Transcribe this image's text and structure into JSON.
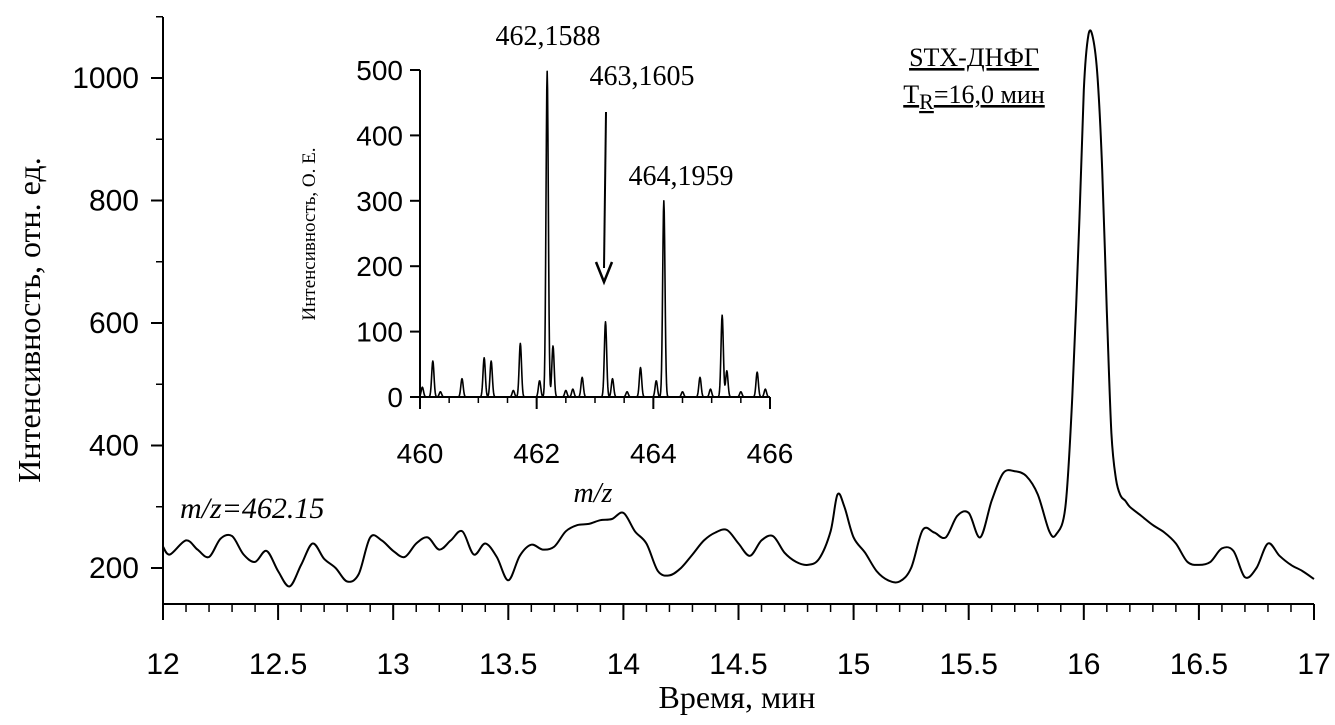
{
  "chart_data": [
    {
      "type": "line",
      "xlabel": "Время, мин",
      "ylabel": "Интенсивность, отн. ед.",
      "xlim": [
        12,
        17
      ],
      "ylim": [
        140,
        1100
      ],
      "x_ticks": [
        "12",
        "12.5",
        "13",
        "13.5",
        "14",
        "14.5",
        "15",
        "15.5",
        "16",
        "16.5",
        "17"
      ],
      "y_ticks": [
        "200",
        "400",
        "600",
        "800",
        "1000"
      ],
      "annotations": {
        "mz": "m/z=462.15",
        "peak_name": "STX-ДНФГ",
        "peak_rt_T": "T",
        "peak_rt_sub": "R",
        "peak_rt_rest": "=16,0 мин"
      },
      "x": [
        12.0,
        12.03,
        12.1,
        12.15,
        12.2,
        12.25,
        12.3,
        12.35,
        12.4,
        12.45,
        12.5,
        12.55,
        12.6,
        12.65,
        12.7,
        12.75,
        12.8,
        12.85,
        12.9,
        12.95,
        13.0,
        13.05,
        13.1,
        13.15,
        13.2,
        13.25,
        13.3,
        13.35,
        13.4,
        13.45,
        13.5,
        13.55,
        13.6,
        13.65,
        13.7,
        13.75,
        13.8,
        13.85,
        13.9,
        13.95,
        14.0,
        14.05,
        14.1,
        14.15,
        14.2,
        14.25,
        14.3,
        14.35,
        14.4,
        14.45,
        14.5,
        14.55,
        14.6,
        14.65,
        14.7,
        14.75,
        14.8,
        14.85,
        14.9,
        14.93,
        14.96,
        15.0,
        15.05,
        15.1,
        15.15,
        15.2,
        15.25,
        15.3,
        15.35,
        15.4,
        15.45,
        15.5,
        15.55,
        15.6,
        15.65,
        15.7,
        15.75,
        15.8,
        15.85,
        15.88,
        15.92,
        15.95,
        15.98,
        16.0,
        16.02,
        16.04,
        16.06,
        16.08,
        16.1,
        16.12,
        16.14,
        16.16,
        16.18,
        16.2,
        16.25,
        16.3,
        16.35,
        16.4,
        16.45,
        16.5,
        16.55,
        16.6,
        16.65,
        16.7,
        16.75,
        16.8,
        16.85,
        16.9,
        16.95,
        17.0
      ],
      "y": [
        235,
        222,
        245,
        230,
        218,
        248,
        252,
        222,
        210,
        228,
        195,
        170,
        205,
        240,
        215,
        200,
        178,
        190,
        250,
        245,
        228,
        218,
        240,
        250,
        230,
        245,
        260,
        222,
        240,
        218,
        180,
        220,
        238,
        230,
        235,
        260,
        270,
        272,
        278,
        280,
        290,
        260,
        240,
        195,
        188,
        200,
        222,
        245,
        258,
        262,
        240,
        220,
        245,
        252,
        225,
        210,
        205,
        215,
        260,
        320,
        300,
        250,
        225,
        195,
        180,
        178,
        200,
        262,
        258,
        250,
        285,
        290,
        250,
        310,
        355,
        358,
        350,
        320,
        260,
        255,
        300,
        480,
        760,
        980,
        1070,
        1065,
        1000,
        850,
        620,
        420,
        345,
        318,
        310,
        300,
        285,
        270,
        258,
        240,
        210,
        205,
        210,
        232,
        228,
        185,
        200,
        240,
        220,
        205,
        195,
        182
      ]
    },
    {
      "type": "line",
      "role": "inset",
      "xlabel": "m/z",
      "ylabel": "Интенсивность, О. Е.",
      "xlim": [
        460,
        466
      ],
      "ylim": [
        0,
        500
      ],
      "x_ticks": [
        "460",
        "462",
        "464",
        "466"
      ],
      "y_ticks": [
        "0",
        "100",
        "200",
        "300",
        "400",
        "500"
      ],
      "peak_labels": [
        {
          "x": 462.16,
          "y": 500,
          "text": "462,1588"
        },
        {
          "x": 463.16,
          "y": 115,
          "text": "463,1605"
        },
        {
          "x": 464.2,
          "y": 300,
          "text": "464,1959"
        }
      ],
      "peaks": [
        {
          "x": 460.04,
          "y": 15
        },
        {
          "x": 460.22,
          "y": 55
        },
        {
          "x": 460.35,
          "y": 8
        },
        {
          "x": 460.72,
          "y": 28
        },
        {
          "x": 461.1,
          "y": 60
        },
        {
          "x": 461.22,
          "y": 55
        },
        {
          "x": 461.6,
          "y": 10
        },
        {
          "x": 461.72,
          "y": 82
        },
        {
          "x": 462.05,
          "y": 25
        },
        {
          "x": 462.18,
          "y": 498
        },
        {
          "x": 462.28,
          "y": 78
        },
        {
          "x": 462.5,
          "y": 10
        },
        {
          "x": 462.62,
          "y": 12
        },
        {
          "x": 462.78,
          "y": 30
        },
        {
          "x": 463.18,
          "y": 115
        },
        {
          "x": 463.3,
          "y": 28
        },
        {
          "x": 463.55,
          "y": 8
        },
        {
          "x": 463.78,
          "y": 45
        },
        {
          "x": 464.05,
          "y": 25
        },
        {
          "x": 464.18,
          "y": 300
        },
        {
          "x": 464.5,
          "y": 8
        },
        {
          "x": 464.8,
          "y": 30
        },
        {
          "x": 464.98,
          "y": 12
        },
        {
          "x": 465.18,
          "y": 125
        },
        {
          "x": 465.26,
          "y": 40
        },
        {
          "x": 465.5,
          "y": 8
        },
        {
          "x": 465.78,
          "y": 38
        },
        {
          "x": 465.92,
          "y": 12
        }
      ]
    }
  ]
}
